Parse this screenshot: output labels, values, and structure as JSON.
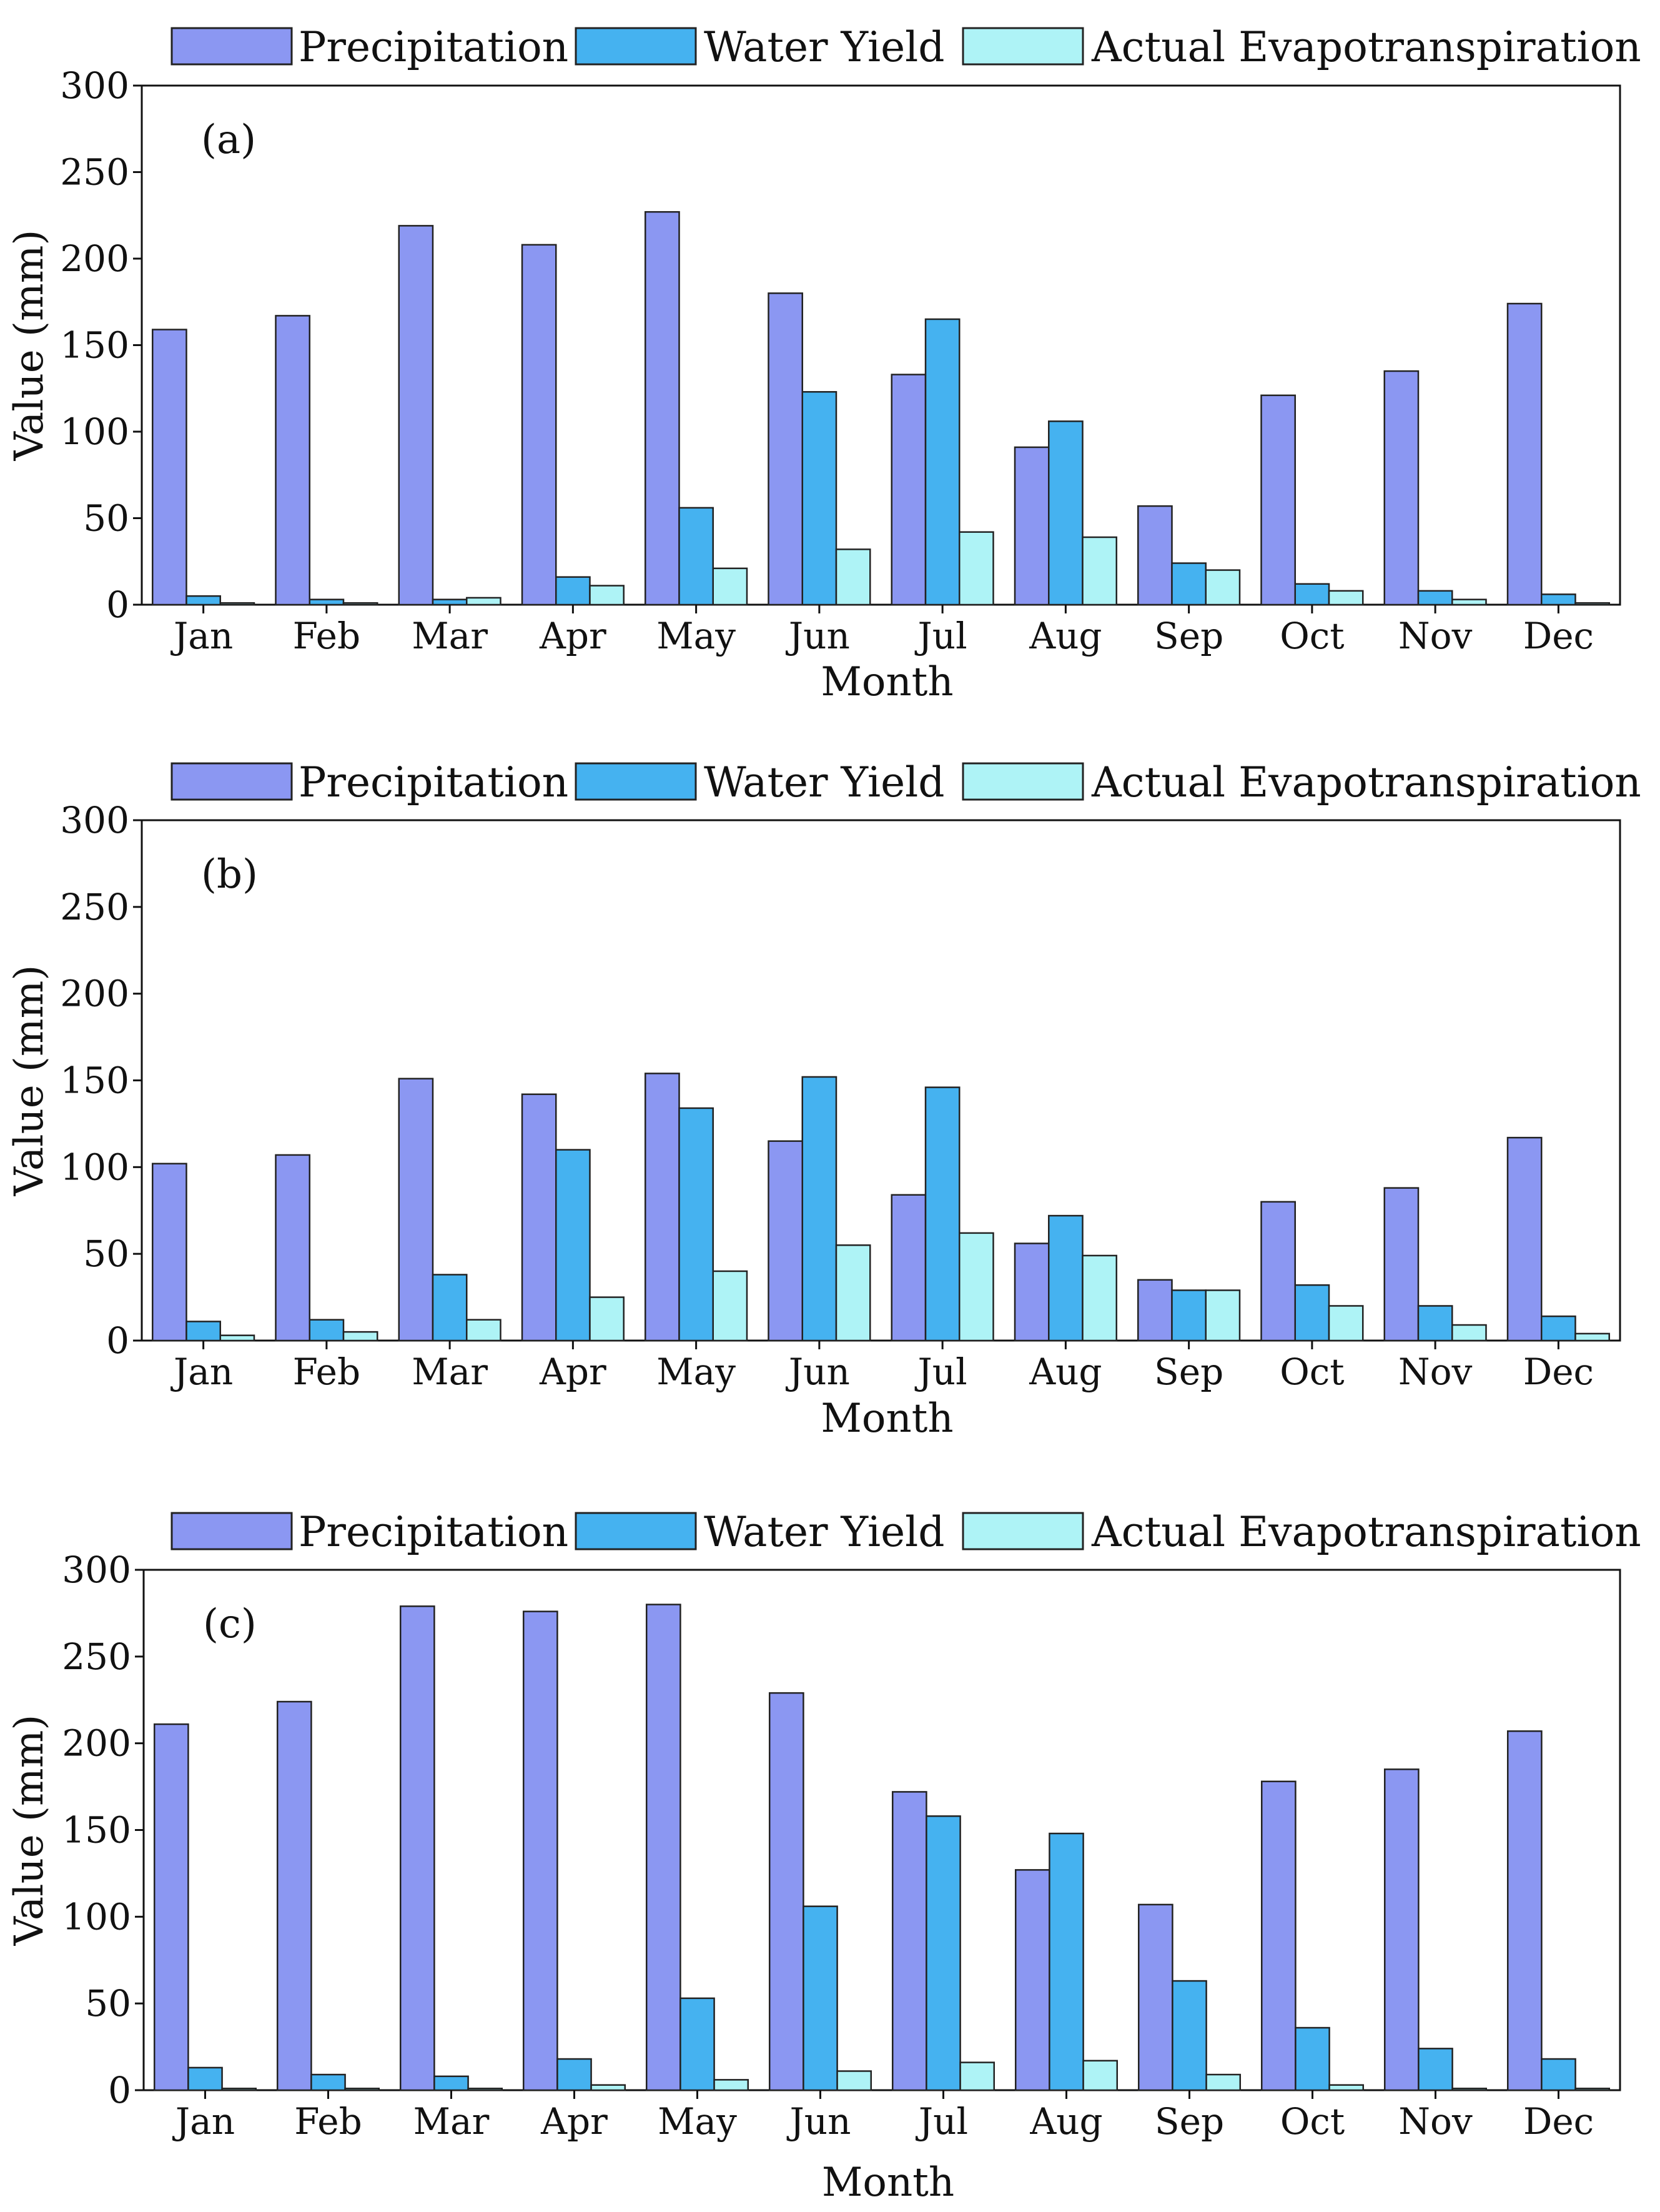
{
  "colors": {
    "precipitation": "#8b97f2",
    "water_yield": "#45b2f0",
    "actual_evapotranspiration": "#aef3f6"
  },
  "chart_data": [
    {
      "type": "bar",
      "panel_label": "(a)",
      "categories": [
        "Jan",
        "Feb",
        "Mar",
        "Apr",
        "May",
        "Jun",
        "Jul",
        "Aug",
        "Sep",
        "Oct",
        "Nov",
        "Dec"
      ],
      "series": [
        {
          "name": "Precipitation",
          "values": [
            159,
            167,
            219,
            208,
            227,
            180,
            133,
            91,
            57,
            121,
            135,
            174
          ]
        },
        {
          "name": "Water Yield",
          "values": [
            5,
            3,
            3,
            16,
            56,
            123,
            165,
            106,
            24,
            12,
            8,
            6
          ]
        },
        {
          "name": "Actual Evapotranspiration",
          "values": [
            1,
            1,
            4,
            11,
            21,
            32,
            42,
            39,
            20,
            8,
            3,
            1
          ]
        }
      ],
      "xlabel": "Month",
      "ylabel": "Value (mm)",
      "ylim": [
        0,
        300
      ],
      "yticks": [
        "0",
        "50",
        "100",
        "150",
        "200",
        "250",
        "300"
      ],
      "grid": false,
      "legend_position": "top"
    },
    {
      "type": "bar",
      "panel_label": "(b)",
      "categories": [
        "Jan",
        "Feb",
        "Mar",
        "Apr",
        "May",
        "Jun",
        "Jul",
        "Aug",
        "Sep",
        "Oct",
        "Nov",
        "Dec"
      ],
      "series": [
        {
          "name": "Precipitation",
          "values": [
            102,
            107,
            151,
            142,
            154,
            115,
            84,
            56,
            35,
            80,
            88,
            117
          ]
        },
        {
          "name": "Water Yield",
          "values": [
            11,
            12,
            38,
            110,
            134,
            152,
            146,
            72,
            29,
            32,
            20,
            14
          ]
        },
        {
          "name": "Actual Evapotranspiration",
          "values": [
            3,
            5,
            12,
            25,
            40,
            55,
            62,
            49,
            29,
            20,
            9,
            4
          ]
        }
      ],
      "xlabel": "Month",
      "ylabel": "Value (mm)",
      "ylim": [
        0,
        300
      ],
      "yticks": [
        "0",
        "50",
        "100",
        "150",
        "200",
        "250",
        "300"
      ],
      "grid": false,
      "legend_position": "top"
    },
    {
      "type": "bar",
      "panel_label": "(c)",
      "categories": [
        "Jan",
        "Feb",
        "Mar",
        "Apr",
        "May",
        "Jun",
        "Jul",
        "Aug",
        "Sep",
        "Oct",
        "Nov",
        "Dec"
      ],
      "series": [
        {
          "name": "Precipitation",
          "values": [
            211,
            224,
            279,
            276,
            280,
            229,
            172,
            127,
            107,
            178,
            185,
            207
          ]
        },
        {
          "name": "Water Yield",
          "values": [
            13,
            9,
            8,
            18,
            53,
            106,
            158,
            148,
            63,
            36,
            24,
            18
          ]
        },
        {
          "name": "Actual Evapotranspiration",
          "values": [
            1,
            1,
            1,
            3,
            6,
            11,
            16,
            17,
            9,
            3,
            1,
            1
          ]
        }
      ],
      "xlabel": "Month",
      "ylabel": "Value (mm)",
      "ylim": [
        0,
        300
      ],
      "yticks": [
        "0",
        "50",
        "100",
        "150",
        "200",
        "250",
        "300"
      ],
      "grid": false,
      "legend_position": "top"
    }
  ]
}
